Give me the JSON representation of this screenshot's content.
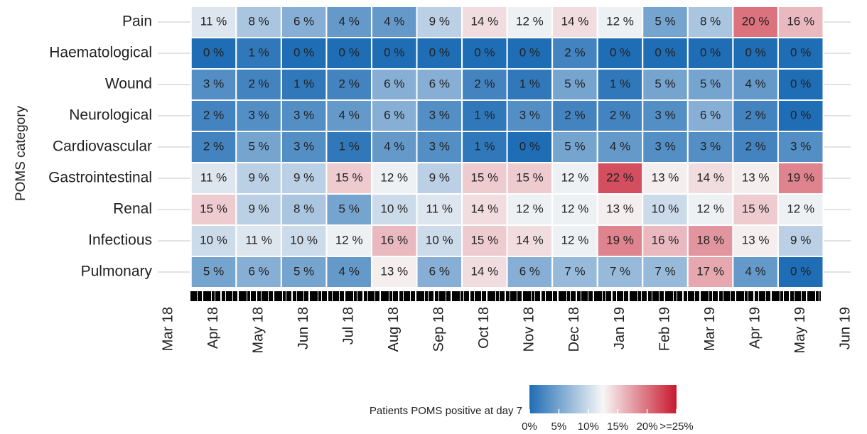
{
  "chart_data": {
    "type": "heatmap",
    "y_label": "POMS category",
    "categories": [
      "Mar 18",
      "Apr 18",
      "May 18",
      "Jun 18",
      "Jul 18",
      "Aug 18",
      "Sep 18",
      "Oct 18",
      "Nov 18",
      "Dec 18",
      "Jan 19",
      "Feb 19",
      "Mar 19",
      "Apr 19",
      "May 19",
      "Jun 19"
    ],
    "series": [
      {
        "name": "Pain",
        "values": [
          null,
          11,
          8,
          6,
          4,
          4,
          9,
          14,
          12,
          14,
          12,
          5,
          8,
          20,
          16,
          null
        ],
        "value_labels": [
          null,
          "11 %",
          "8 %",
          "6 %",
          "4 %",
          "4 %",
          "9 %",
          "14 %",
          "12 %",
          "14 %",
          "12 %",
          "5 %",
          "8 %",
          "20 %",
          "16 %",
          null
        ]
      },
      {
        "name": "Haematological",
        "values": [
          null,
          0,
          1,
          0,
          0,
          0,
          0,
          0,
          0,
          2,
          0,
          0,
          0,
          0,
          0,
          null
        ],
        "value_labels": [
          null,
          "0 %",
          "1 %",
          "0 %",
          "0 %",
          "0 %",
          "0 %",
          "0 %",
          "0 %",
          "2 %",
          "0 %",
          "0 %",
          "0 %",
          "0 %",
          "0 %",
          null
        ]
      },
      {
        "name": "Wound",
        "values": [
          null,
          3,
          2,
          1,
          2,
          6,
          6,
          2,
          1,
          5,
          1,
          5,
          5,
          4,
          0,
          null
        ],
        "value_labels": [
          null,
          "3 %",
          "2 %",
          "1 %",
          "2 %",
          "6 %",
          "6 %",
          "2 %",
          "1 %",
          "5 %",
          "1 %",
          "5 %",
          "5 %",
          "4 %",
          "0 %",
          null
        ]
      },
      {
        "name": "Neurological",
        "values": [
          null,
          2,
          3,
          3,
          4,
          6,
          3,
          1,
          3,
          2,
          2,
          3,
          6,
          2,
          0,
          null
        ],
        "value_labels": [
          null,
          "2 %",
          "3 %",
          "3 %",
          "4 %",
          "6 %",
          "3 %",
          "1 %",
          "3 %",
          "2 %",
          "2 %",
          "3 %",
          "6 %",
          "2 %",
          "0 %",
          null
        ]
      },
      {
        "name": "Cardiovascular",
        "values": [
          null,
          2,
          5,
          3,
          1,
          4,
          3,
          1,
          0,
          5,
          4,
          3,
          3,
          2,
          3,
          null
        ],
        "value_labels": [
          null,
          "2 %",
          "5 %",
          "3 %",
          "1 %",
          "4 %",
          "3 %",
          "1 %",
          "0 %",
          "5 %",
          "4 %",
          "3 %",
          "3 %",
          "2 %",
          "3 %",
          null
        ]
      },
      {
        "name": "Gastrointestinal",
        "values": [
          null,
          11,
          9,
          9,
          15,
          12,
          9,
          15,
          15,
          12,
          22,
          13,
          14,
          13,
          19,
          null
        ],
        "value_labels": [
          null,
          "11 %",
          "9 %",
          "9 %",
          "15 %",
          "12 %",
          "9 %",
          "15 %",
          "15 %",
          "12 %",
          "22 %",
          "13 %",
          "14 %",
          "13 %",
          "19 %",
          null
        ]
      },
      {
        "name": "Renal",
        "values": [
          null,
          15,
          9,
          8,
          5,
          10,
          11,
          14,
          12,
          12,
          13,
          10,
          12,
          15,
          12,
          null
        ],
        "value_labels": [
          null,
          "15 %",
          "9 %",
          "8 %",
          "5 %",
          "10 %",
          "11 %",
          "14 %",
          "12 %",
          "12 %",
          "13 %",
          "10 %",
          "12 %",
          "15 %",
          "12 %",
          null
        ]
      },
      {
        "name": "Infectious",
        "values": [
          null,
          10,
          11,
          10,
          12,
          16,
          10,
          15,
          14,
          12,
          19,
          16,
          18,
          13,
          9,
          null
        ],
        "value_labels": [
          null,
          "10 %",
          "11 %",
          "10 %",
          "12 %",
          "16 %",
          "10 %",
          "15 %",
          "14 %",
          "12 %",
          "19 %",
          "16 %",
          "18 %",
          "13 %",
          "9 %",
          null
        ]
      },
      {
        "name": "Pulmonary",
        "values": [
          null,
          5,
          6,
          5,
          4,
          13,
          6,
          14,
          6,
          7,
          7,
          7,
          17,
          4,
          0,
          null
        ],
        "value_labels": [
          null,
          "5 %",
          "6 %",
          "5 %",
          "4 %",
          "13 %",
          "6 %",
          "14 %",
          "6 %",
          "7 %",
          "7 %",
          "7 %",
          "17 %",
          "4 %",
          "0 %",
          null
        ]
      }
    ],
    "colorbar": {
      "title": "Patients POMS positive at day 7",
      "clim": [
        0,
        25
      ],
      "colors": [
        "#1f6db5",
        "#f7f7f7",
        "#c8192e"
      ],
      "ticks": [
        {
          "value": 0,
          "label": "0%"
        },
        {
          "value": 5,
          "label": "5%"
        },
        {
          "value": 10,
          "label": "10%"
        },
        {
          "value": 15,
          "label": "15%"
        },
        {
          "value": 20,
          "label": "20%"
        },
        {
          "value": 25,
          "label": ">=25%"
        }
      ]
    }
  }
}
